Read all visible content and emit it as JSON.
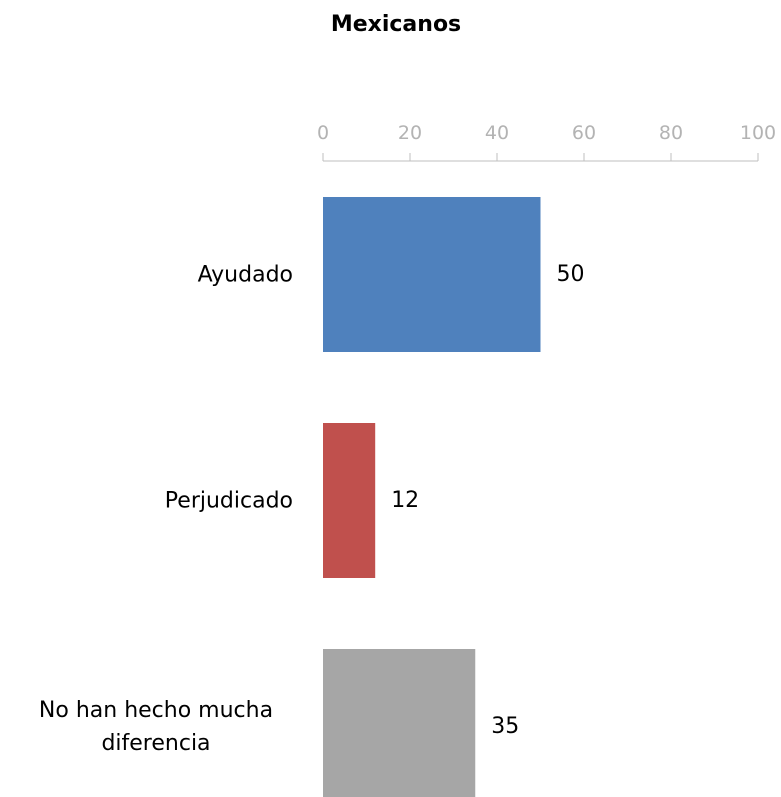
{
  "chart_data": {
    "type": "bar",
    "orientation": "horizontal",
    "title": "Mexicanos",
    "xlabel": "",
    "ylabel": "",
    "xlim": [
      0,
      100
    ],
    "ticks": [
      0,
      20,
      40,
      60,
      80,
      100
    ],
    "tick_labels": [
      "0",
      "20",
      "40",
      "60",
      "80",
      "100"
    ],
    "axis_position": "top",
    "grid": false,
    "legend": "none",
    "categories": [
      [
        "Ayudado"
      ],
      [
        "Perjudicado"
      ],
      [
        "No han hecho mucha",
        "diferencia"
      ]
    ],
    "values": [
      50,
      12,
      35
    ],
    "data_labels": [
      "50",
      "12",
      "35"
    ],
    "colors": [
      "#4f81bd",
      "#c0504d",
      "#a6a6a6"
    ],
    "axis_color": "#bfbfbf",
    "tick_label_color": "#b3b3b3"
  }
}
